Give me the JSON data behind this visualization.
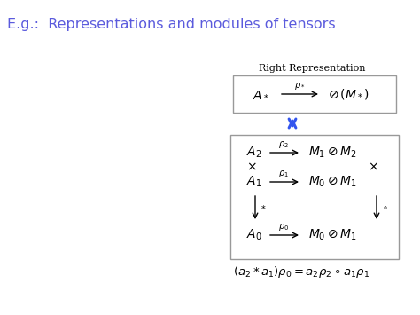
{
  "title": "E.g.:  Representations and modules of tensors",
  "title_color": "#5b5bdd",
  "bg_color": "#ffffff",
  "title_fontsize": 11.5,
  "figsize": [
    4.74,
    3.55
  ],
  "dpi": 100
}
